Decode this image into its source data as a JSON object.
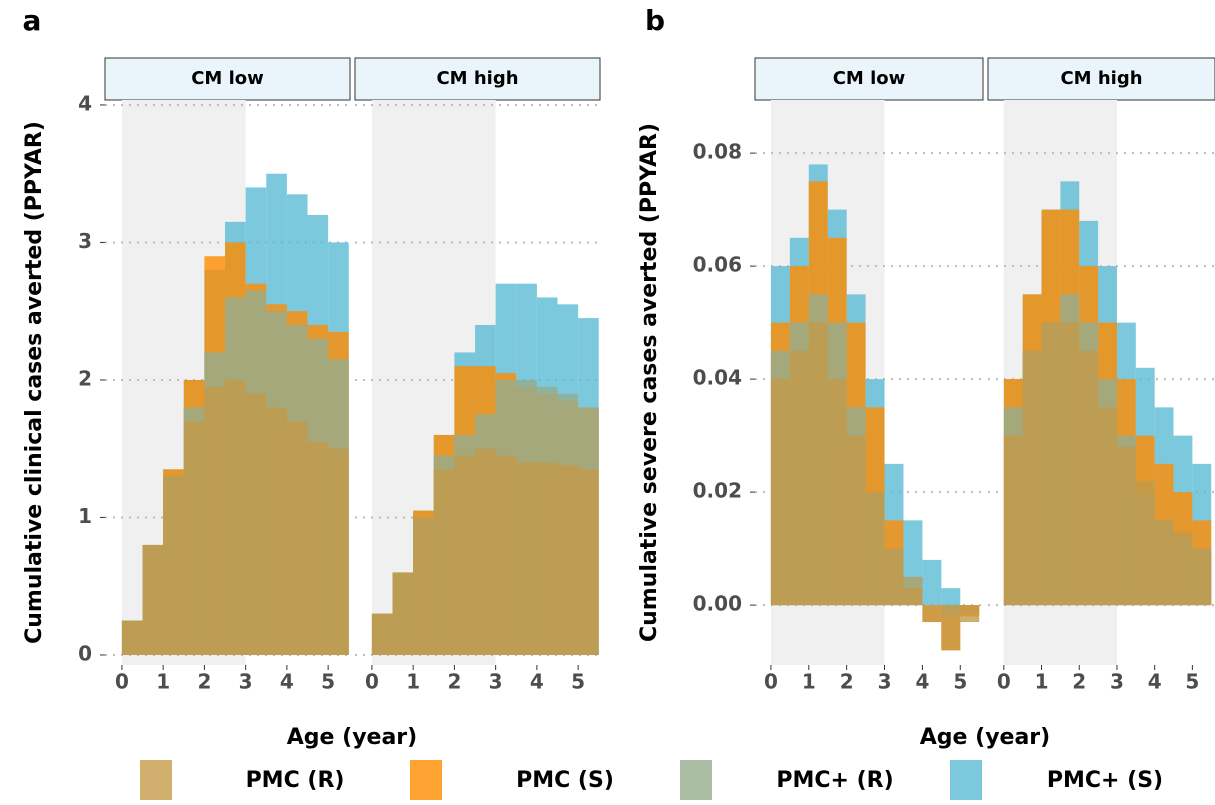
{
  "legend": [
    {
      "name": "PMC (R)",
      "color": "#c39a4a"
    },
    {
      "name": "PMC (S)",
      "color": "#ff8c00"
    },
    {
      "name": "PMC+ (R)",
      "color": "#93ad8e"
    },
    {
      "name": "PMC+ (S)",
      "color": "#5bbcd6"
    }
  ],
  "chart_data": [
    {
      "type": "bar",
      "panel": "a",
      "y_label": "Cumulative clinical cases averted (PPYAR)",
      "x_label": "Age (year)",
      "x": [
        0,
        0.5,
        1,
        1.5,
        2,
        2.5,
        3,
        3.5,
        4,
        4.5,
        5
      ],
      "xlim": [
        -0.41,
        5.53
      ],
      "xticks": [
        0,
        1,
        2,
        3,
        4,
        5
      ],
      "ylim": [
        -0.073,
        4.036
      ],
      "yticks": [
        0,
        1,
        2,
        3,
        4
      ],
      "grid": true,
      "shade": [
        0,
        3
      ],
      "facets": [
        {
          "title": "CM low",
          "series": [
            {
              "values": [
                0.25,
                0.8,
                1.3,
                1.7,
                1.95,
                2.0,
                1.9,
                1.8,
                1.7,
                1.55,
                1.5
              ]
            },
            {
              "values": [
                0.25,
                0.8,
                1.35,
                2.0,
                2.9,
                3.0,
                2.7,
                2.55,
                2.5,
                2.4,
                2.35
              ]
            },
            {
              "values": [
                0.25,
                0.8,
                1.3,
                1.8,
                2.2,
                2.6,
                2.65,
                2.5,
                2.4,
                2.3,
                2.15
              ]
            },
            {
              "values": [
                0.25,
                0.8,
                1.35,
                2.0,
                2.8,
                3.15,
                3.4,
                3.5,
                3.35,
                3.2,
                3.0
              ]
            }
          ]
        },
        {
          "title": "CM high",
          "series": [
            {
              "values": [
                0.3,
                0.6,
                1.0,
                1.35,
                1.45,
                1.5,
                1.45,
                1.4,
                1.4,
                1.38,
                1.35
              ]
            },
            {
              "values": [
                0.3,
                0.6,
                1.05,
                1.6,
                2.1,
                2.1,
                2.05,
                1.95,
                1.9,
                1.85,
                1.8
              ]
            },
            {
              "values": [
                0.3,
                0.6,
                1.0,
                1.45,
                1.6,
                1.75,
                2.0,
                2.0,
                1.95,
                1.9,
                1.8
              ]
            },
            {
              "values": [
                0.3,
                0.6,
                1.05,
                1.6,
                2.2,
                2.4,
                2.7,
                2.7,
                2.6,
                2.55,
                2.45
              ]
            }
          ]
        }
      ]
    },
    {
      "type": "bar",
      "panel": "b",
      "y_label": "Cumulative severe cases averted (PPYAR)",
      "x_label": "Age (year)",
      "x": [
        0,
        0.5,
        1,
        1.5,
        2,
        2.5,
        3,
        3.5,
        4,
        4.5,
        5
      ],
      "xlim": [
        -0.42,
        5.6
      ],
      "xticks": [
        0,
        1,
        2,
        3,
        4,
        5
      ],
      "ylim": [
        -0.0106,
        0.0894
      ],
      "yticks": [
        {
          "value": 0,
          "label": "0.00"
        },
        {
          "value": 0.02,
          "label": "0.02"
        },
        {
          "value": 0.04,
          "label": "0.04"
        },
        {
          "value": 0.06,
          "label": "0.06"
        },
        {
          "value": 0.08,
          "label": "0.08"
        }
      ],
      "grid": true,
      "shade": [
        0,
        3
      ],
      "facets": [
        {
          "title": "CM low",
          "series": [
            {
              "values": [
                0.04,
                0.045,
                0.05,
                0.04,
                0.03,
                0.02,
                0.01,
                0.003,
                -0.003,
                -0.008,
                -0.003
              ]
            },
            {
              "values": [
                0.05,
                0.06,
                0.075,
                0.065,
                0.05,
                0.035,
                0.015,
                0.005,
                -0.003,
                -0.008,
                -0.002
              ]
            },
            {
              "values": [
                0.045,
                0.05,
                0.055,
                0.05,
                0.035,
                0.02,
                0.01,
                0.005,
                0,
                -0.002,
                0
              ]
            },
            {
              "values": [
                0.06,
                0.065,
                0.078,
                0.07,
                0.055,
                0.04,
                0.025,
                0.015,
                0.008,
                0.003,
                -0.001
              ]
            }
          ]
        },
        {
          "title": "CM high",
          "series": [
            {
              "values": [
                0.03,
                0.045,
                0.05,
                0.05,
                0.045,
                0.035,
                0.028,
                0.022,
                0.015,
                0.013,
                0.01
              ]
            },
            {
              "values": [
                0.04,
                0.055,
                0.07,
                0.07,
                0.06,
                0.05,
                0.04,
                0.03,
                0.025,
                0.02,
                0.015
              ]
            },
            {
              "values": [
                0.035,
                0.045,
                0.05,
                0.055,
                0.05,
                0.04,
                0.03,
                0.02,
                0.015,
                0.012,
                0.01
              ]
            },
            {
              "values": [
                0.04,
                0.055,
                0.07,
                0.075,
                0.068,
                0.06,
                0.05,
                0.042,
                0.035,
                0.03,
                0.025
              ]
            }
          ]
        }
      ]
    }
  ]
}
